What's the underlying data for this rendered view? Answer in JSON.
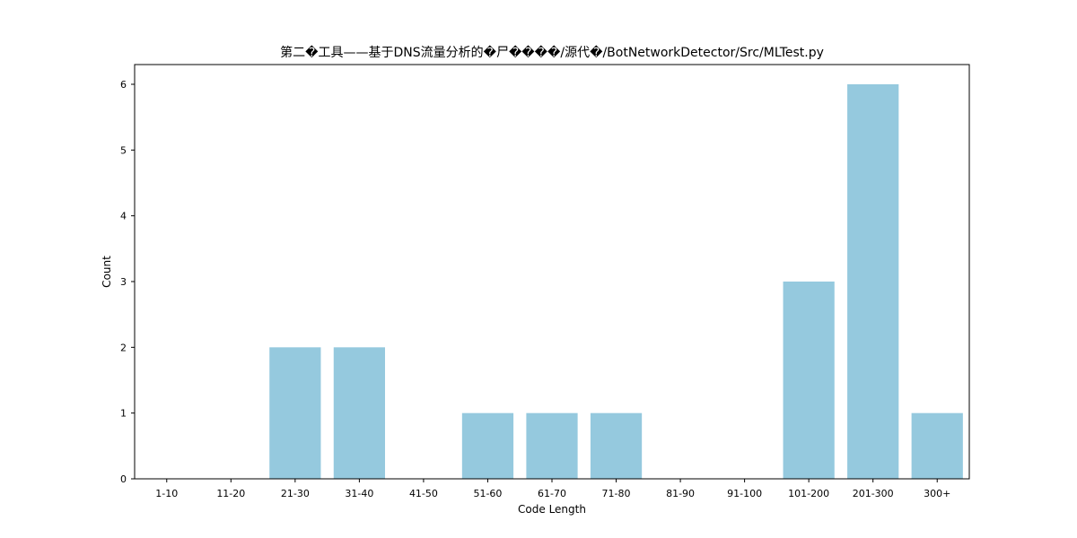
{
  "chart_data": {
    "type": "bar",
    "title": "第二�工具——基于DNS流量分析的�尸����/源代�/BotNetworkDetector/Src/MLTest.py",
    "xlabel": "Code Length",
    "ylabel": "Count",
    "categories": [
      "1-10",
      "11-20",
      "21-30",
      "31-40",
      "41-50",
      "51-60",
      "61-70",
      "71-80",
      "81-90",
      "91-100",
      "101-200",
      "201-300",
      "300+"
    ],
    "values": [
      0,
      0,
      2,
      2,
      0,
      1,
      1,
      1,
      0,
      0,
      3,
      6,
      1
    ],
    "yticks": [
      0,
      1,
      2,
      3,
      4,
      5,
      6
    ],
    "ylim": [
      0,
      6.3
    ],
    "grid": false,
    "bar_color": "#95c9de"
  }
}
